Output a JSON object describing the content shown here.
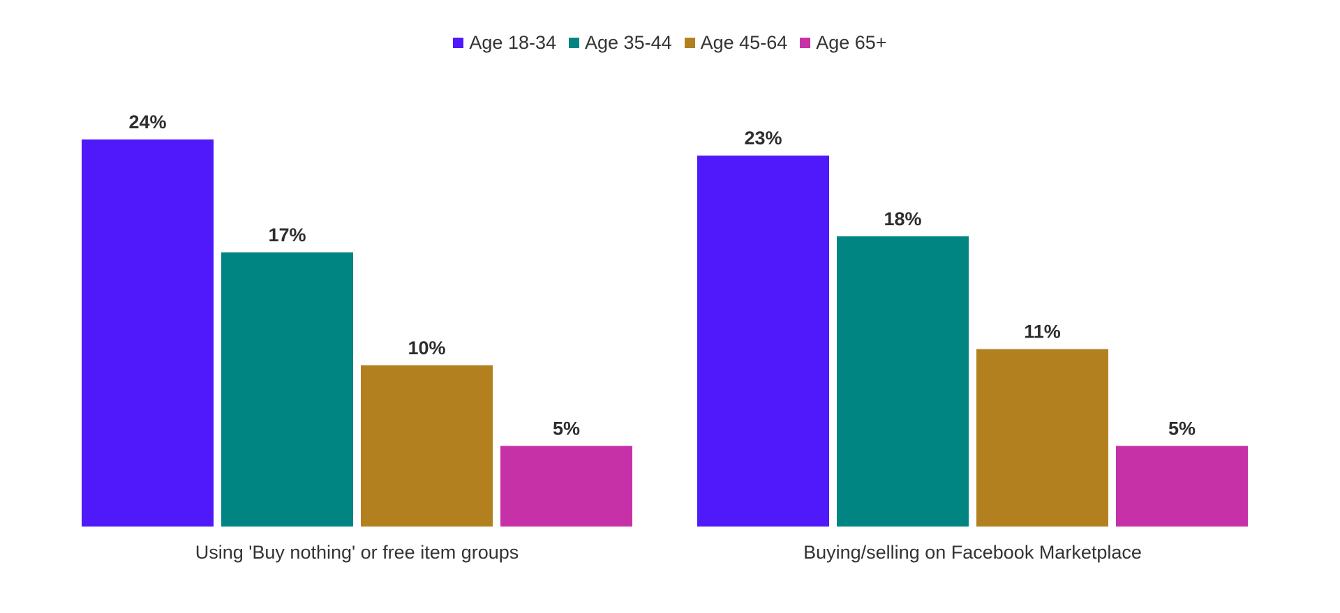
{
  "chart_data": {
    "type": "bar",
    "categories": [
      "Using 'Buy nothing' or free item groups",
      "Buying/selling on Facebook Marketplace"
    ],
    "series": [
      {
        "name": "Age 18-34",
        "values": [
          24,
          23
        ],
        "labels": [
          "24%",
          "23%"
        ],
        "color": "#4F19FA"
      },
      {
        "name": "Age 35-44",
        "values": [
          17,
          18
        ],
        "labels": [
          "17%",
          "18%"
        ],
        "color": "#008583"
      },
      {
        "name": "Age 45-64",
        "values": [
          10,
          11
        ],
        "labels": [
          "10%",
          "11%"
        ],
        "color": "#B2801F"
      },
      {
        "name": "Age 65+",
        "values": [
          5,
          5
        ],
        "labels": [
          "5%",
          "5%"
        ],
        "color": "#C731A8"
      }
    ],
    "legend_position": "top-center",
    "grid": false,
    "ylim": [
      0,
      24
    ]
  }
}
